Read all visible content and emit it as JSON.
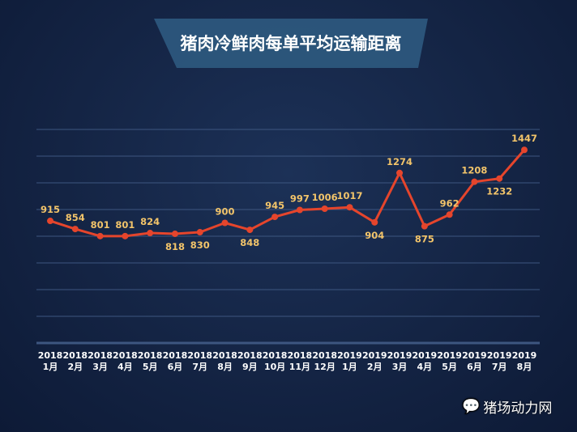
{
  "chart_data": {
    "type": "line",
    "title": "猪肉冷鲜肉每单平均运输距离",
    "categories": [
      "2018\n1月",
      "2018\n2月",
      "2018\n3月",
      "2018\n4月",
      "2018\n5月",
      "2018\n6月",
      "2018\n7月",
      "2018\n8月",
      "2018\n9月",
      "2018\n10月",
      "2018\n11月",
      "2018\n12月",
      "2019\n1月",
      "2019\n2月",
      "2019\n3月",
      "2019\n4月",
      "2019\n5月",
      "2019\n6月",
      "2019\n7月",
      "2019\n8月"
    ],
    "values": [
      915,
      854,
      801,
      801,
      824,
      818,
      830,
      900,
      848,
      945,
      997,
      1006,
      1017,
      904,
      1274,
      875,
      962,
      1208,
      1232,
      1447
    ],
    "ylim": [
      0,
      1600
    ],
    "grid": true,
    "y_tick_labels_shown": false,
    "colors": {
      "line": "#e5452c",
      "label": "#f2c46a",
      "grid": "#3d5680",
      "title_bg": "#2e5a80"
    }
  },
  "watermark": {
    "icon": "wechat-icon",
    "text": "猪场动力网"
  }
}
